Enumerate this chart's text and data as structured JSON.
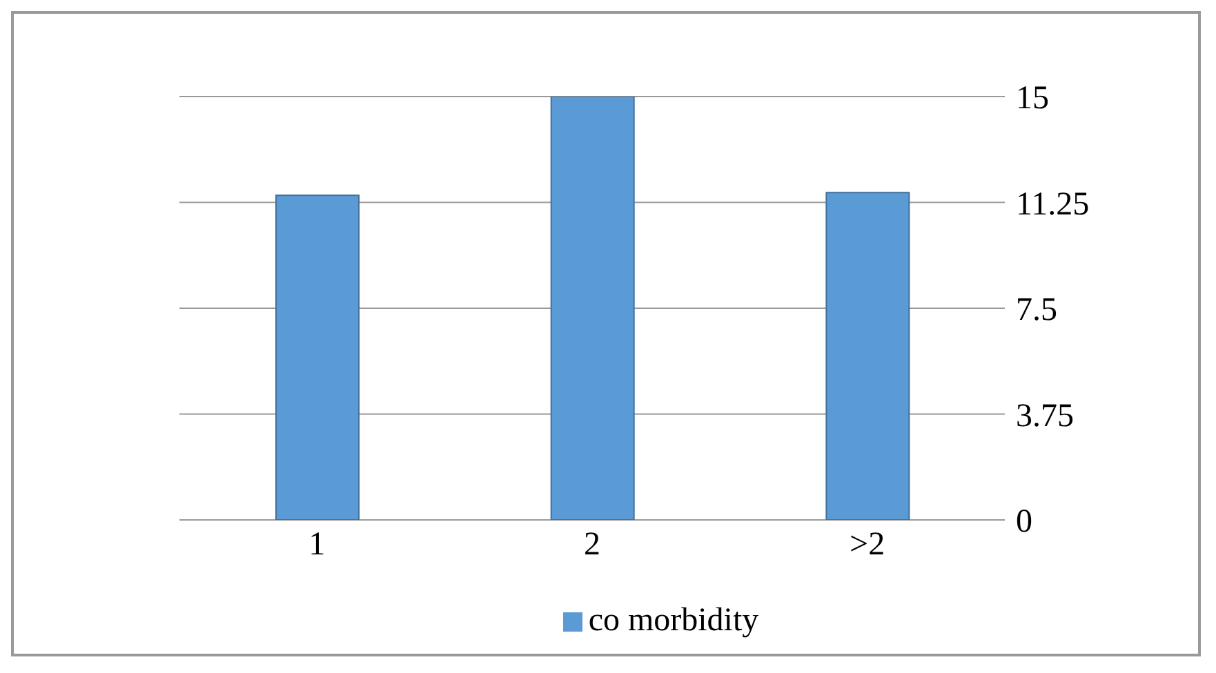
{
  "chart_data": {
    "type": "bar",
    "categories": [
      "1",
      "2",
      ">2"
    ],
    "series": [
      {
        "name": "co morbidity",
        "color": "#5b9bd5",
        "values": [
          11.5,
          15,
          11.6
        ]
      }
    ],
    "ylim": [
      0,
      15
    ],
    "yticks": [
      0,
      3.75,
      7.5,
      11.25,
      15
    ],
    "grid": "y",
    "legend": "bottom"
  }
}
